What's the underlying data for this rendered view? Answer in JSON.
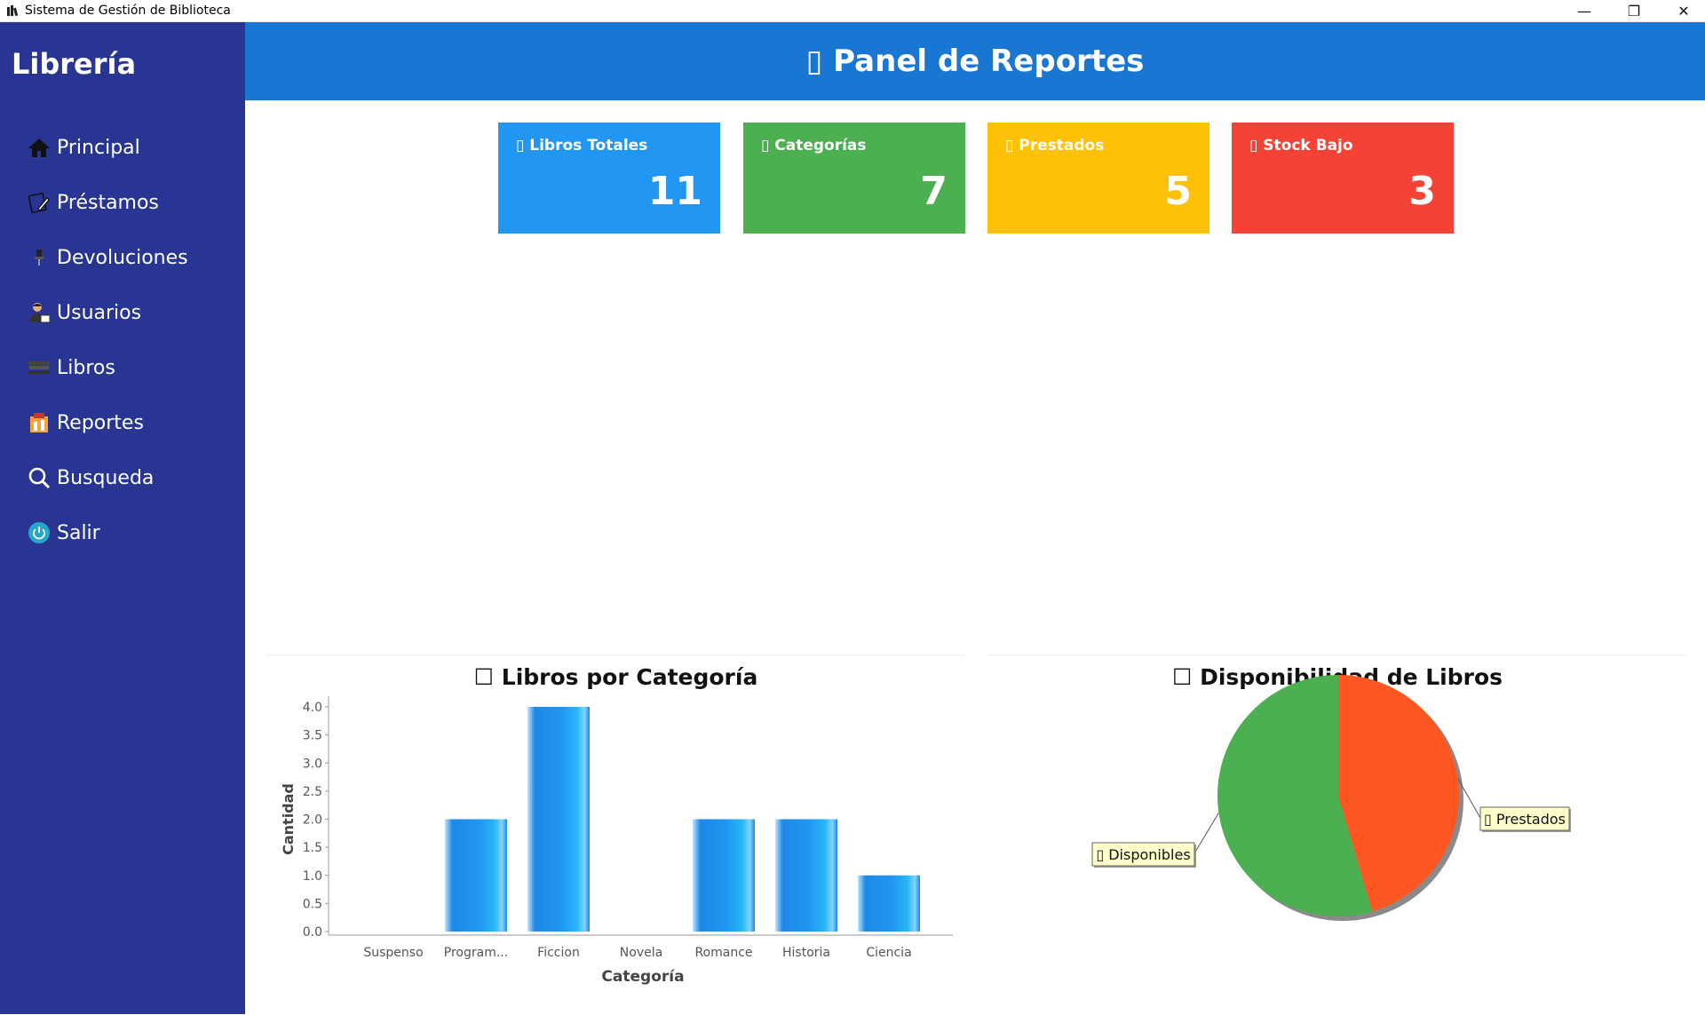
{
  "window": {
    "title": "Sistema de Gestión de Biblioteca",
    "minimize_glyph": "—",
    "maximize_glyph": "❐",
    "close_glyph": "✕"
  },
  "sidebar": {
    "brand": "Librería",
    "items": [
      {
        "label": "Principal",
        "icon": "home-icon"
      },
      {
        "label": "Préstamos",
        "icon": "book-edit-icon"
      },
      {
        "label": "Devoluciones",
        "icon": "pin-icon"
      },
      {
        "label": "Usuarios",
        "icon": "user-icon"
      },
      {
        "label": "Libros",
        "icon": "books-icon"
      },
      {
        "label": "Reportes",
        "icon": "report-icon"
      },
      {
        "label": "Busqueda",
        "icon": "search-icon"
      },
      {
        "label": "Salir",
        "icon": "power-icon"
      }
    ]
  },
  "header": {
    "title": "▯ Panel de Reportes"
  },
  "cards": [
    {
      "label": "▯ Libros Totales",
      "value": "11",
      "color": "#2196f3"
    },
    {
      "label": "▯ Categorías",
      "value": "7",
      "color": "#4caf50"
    },
    {
      "label": "▯ Prestados",
      "value": "5",
      "color": "#ffc107"
    },
    {
      "label": "▯ Stock Bajo",
      "value": "3",
      "color": "#f44336"
    }
  ],
  "chart_data": [
    {
      "type": "bar",
      "title": "☐ Libros por Categoría",
      "xlabel": "Categoría",
      "ylabel": "Cantidad",
      "categories": [
        "Suspenso",
        "Program...",
        "Ficcion",
        "Novela",
        "Romance",
        "Historia",
        "Ciencia"
      ],
      "values": [
        0,
        2,
        4,
        0,
        2,
        2,
        1
      ],
      "ylim": [
        0,
        4.0
      ],
      "yticks": [
        "0.0",
        "0.5",
        "1.0",
        "1.5",
        "2.0",
        "2.5",
        "3.0",
        "3.5",
        "4.0"
      ],
      "bar_color": "#2196f3",
      "grid": false
    },
    {
      "type": "pie",
      "title": "☐ Disponibilidad de Libros",
      "labels": [
        "▯ Prestados",
        "▯ Disponibles"
      ],
      "values": [
        5,
        6
      ],
      "colors": [
        "#ff5722",
        "#4caf50"
      ]
    }
  ]
}
